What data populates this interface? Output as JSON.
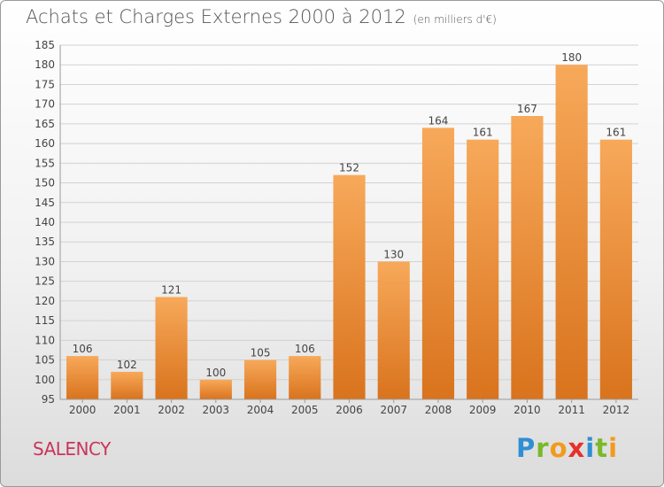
{
  "title": "Achats et Charges Externes 2000 à 2012",
  "unit": "(en milliers d'€)",
  "place": "SALENCY",
  "logo": {
    "letters": [
      "P",
      "r",
      "o",
      "x",
      "i",
      "t",
      "i"
    ],
    "colors": [
      "#2e8fd4",
      "#7ab929",
      "#f39a1d",
      "#e6302c",
      "#2e8fd4",
      "#7ab929",
      "#f39a1d"
    ]
  },
  "colors": {
    "bar_top": "#f7a95a",
    "bar_bottom": "#d9731d",
    "grid": "#d2d2d2",
    "text": "#444444"
  },
  "chart_data": {
    "type": "bar",
    "title": "Achats et Charges Externes 2000 à 2012",
    "subtitle": "(en milliers d'€)",
    "categories": [
      "2000",
      "2001",
      "2002",
      "2003",
      "2004",
      "2005",
      "2006",
      "2007",
      "2008",
      "2009",
      "2010",
      "2011",
      "2012"
    ],
    "values": [
      106,
      102,
      121,
      100,
      105,
      106,
      152,
      130,
      164,
      161,
      167,
      180,
      161
    ],
    "ylim": [
      95,
      185
    ],
    "yticks": [
      95,
      100,
      105,
      110,
      115,
      120,
      125,
      130,
      135,
      140,
      145,
      150,
      155,
      160,
      165,
      170,
      175,
      180,
      185
    ],
    "grid": true,
    "xlabel": "",
    "ylabel": ""
  }
}
